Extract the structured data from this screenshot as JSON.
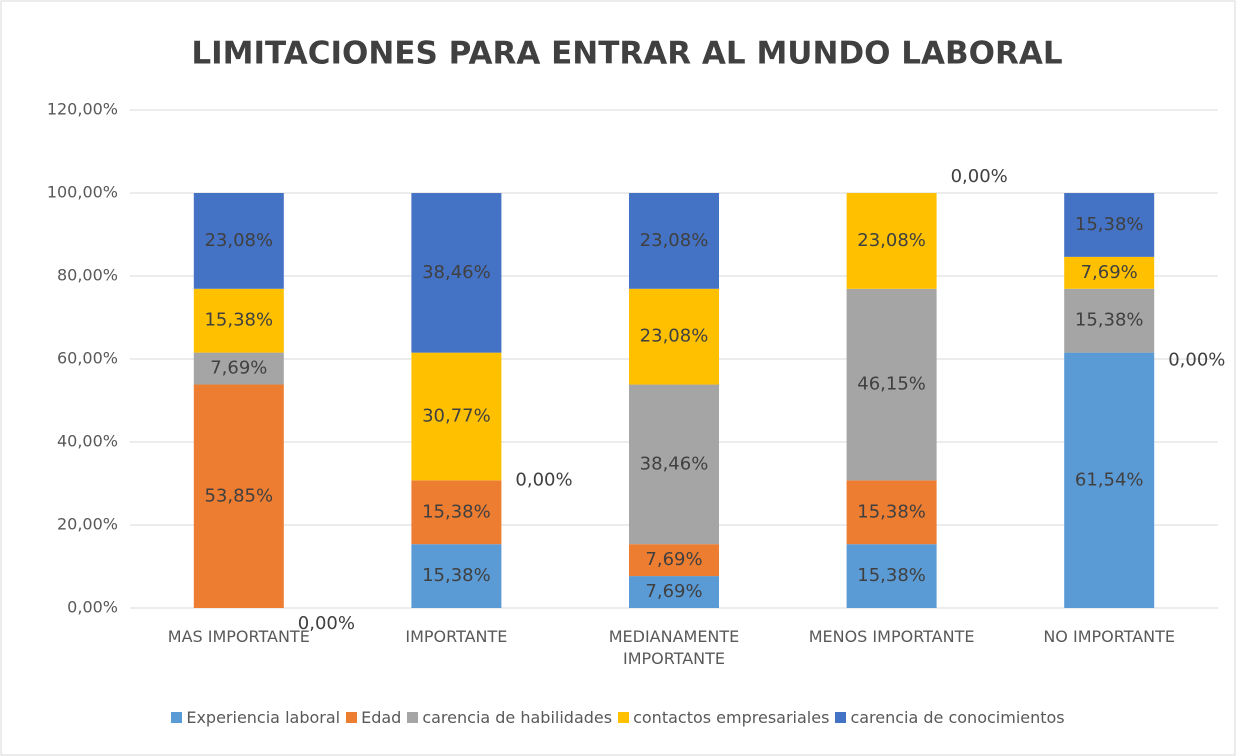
{
  "chart_data": {
    "type": "stacked_bar",
    "title": "LIMITACIONES PARA ENTRAR AL MUNDO LABORAL",
    "categories": [
      "MAS IMPORTANTE",
      "IMPORTANTE",
      "MEDIANAMENTE IMPORTANTE",
      "MENOS IMPORTANTE",
      "NO IMPORTANTE"
    ],
    "series": [
      {
        "name": "Experiencia laboral",
        "color": "#5b9bd5",
        "values": [
          0,
          15.38,
          7.69,
          15.38,
          61.54
        ],
        "value_labels": [
          "0,00%",
          "15,38%",
          "7,69%",
          "15,38%",
          "61,54%"
        ]
      },
      {
        "name": "Edad",
        "color": "#ed7d31",
        "values": [
          53.85,
          15.38,
          7.69,
          15.38,
          0
        ],
        "value_labels": [
          "53,85%",
          "15,38%",
          "7,69%",
          "15,38%",
          "0,00%"
        ]
      },
      {
        "name": "carencia de habilidades",
        "color": "#a5a5a5",
        "values": [
          7.69,
          0,
          38.46,
          46.15,
          15.38
        ],
        "value_labels": [
          "7,69%",
          "0,00%",
          "38,46%",
          "46,15%",
          "15,38%"
        ]
      },
      {
        "name": "contactos empresariales",
        "color": "#ffc000",
        "values": [
          15.38,
          30.77,
          23.08,
          23.08,
          7.69
        ],
        "value_labels": [
          "15,38%",
          "30,77%",
          "23,08%",
          "23,08%",
          "7,69%"
        ]
      },
      {
        "name": "carencia de conocimientos",
        "color": "#4472c4",
        "values": [
          23.08,
          38.46,
          23.08,
          0,
          15.38
        ],
        "value_labels": [
          "23,08%",
          "38,46%",
          "23,08%",
          "0,00%",
          "15,38%"
        ]
      }
    ],
    "ylim": [
      0,
      120
    ],
    "yticks": [
      {
        "value": 0,
        "label": "0,00%"
      },
      {
        "value": 20,
        "label": "20,00%"
      },
      {
        "value": 40,
        "label": "40,00%"
      },
      {
        "value": 60,
        "label": "60,00%"
      },
      {
        "value": 80,
        "label": "80,00%"
      },
      {
        "value": 100,
        "label": "100,00%"
      },
      {
        "value": 120,
        "label": "120,00%"
      }
    ],
    "grid": true,
    "legend": "bottom"
  }
}
